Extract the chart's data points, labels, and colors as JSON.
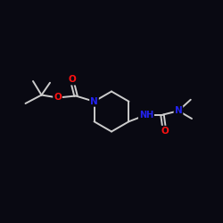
{
  "background": "#090912",
  "bond_color": "#cccccc",
  "O_color": "#ff1111",
  "N_color": "#2222ee",
  "bond_width": 1.4,
  "font_size": 7.5,
  "fig_size": [
    2.5,
    2.5
  ],
  "dpi": 100,
  "xlim": [
    0.0,
    10.0
  ],
  "ylim": [
    1.5,
    8.5
  ]
}
